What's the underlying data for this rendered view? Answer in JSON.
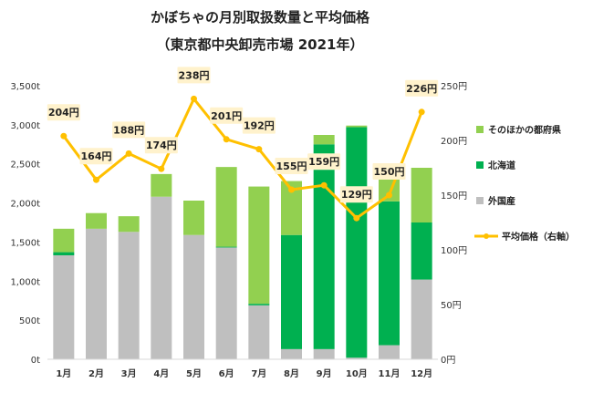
{
  "chart_data": {
    "type": "bar",
    "title": "かぼちゃの月別取扱数量と平均価格",
    "subtitle": "（東京都中央卸売市場 2021年）",
    "categories": [
      "1月",
      "2月",
      "3月",
      "4月",
      "5月",
      "6月",
      "7月",
      "8月",
      "9月",
      "10月",
      "11月",
      "12月"
    ],
    "series": [
      {
        "name": "外国産",
        "color": "#bfbfbf",
        "values": [
          1330,
          1670,
          1630,
          2080,
          1590,
          1430,
          690,
          130,
          130,
          20,
          180,
          1020
        ]
      },
      {
        "name": "北海道",
        "color": "#00b050",
        "values": [
          40,
          0,
          0,
          0,
          0,
          10,
          20,
          1460,
          2620,
          2950,
          1840,
          730
        ]
      },
      {
        "name": "そのほかの都府県",
        "color": "#92d050",
        "values": [
          300,
          200,
          200,
          290,
          440,
          1020,
          1500,
          690,
          120,
          20,
          420,
          700
        ]
      }
    ],
    "line_series": {
      "name": "平均価格（右軸）",
      "color": "#ffc000",
      "values": [
        204,
        164,
        188,
        174,
        238,
        201,
        192,
        155,
        159,
        129,
        150,
        226
      ],
      "labels": [
        "204円",
        "164円",
        "188円",
        "174円",
        "238円",
        "201円",
        "192円",
        "155円",
        "159円",
        "129円",
        "150円",
        "226円"
      ]
    },
    "y_left": {
      "min": 0,
      "max": 3500,
      "ticks": [
        0,
        500,
        1000,
        1500,
        2000,
        2500,
        3000,
        3500
      ],
      "tick_labels": [
        "0t",
        "500t",
        "1,000t",
        "1,500t",
        "2,000t",
        "2,500t",
        "3,000t",
        "3,500t"
      ]
    },
    "y_right": {
      "min": 0,
      "max": 250,
      "ticks": [
        0,
        50,
        100,
        150,
        200,
        250
      ],
      "tick_labels": [
        "0円",
        "50円",
        "100円",
        "150円",
        "200円",
        "250円"
      ]
    },
    "legend": {
      "placement": "right",
      "items": [
        {
          "label": "そのほかの都府県",
          "color": "#92d050",
          "kind": "bar"
        },
        {
          "label": "北海道",
          "color": "#00b050",
          "kind": "bar"
        },
        {
          "label": "外国産",
          "color": "#bfbfbf",
          "kind": "bar"
        },
        {
          "label": "平均価格（右軸）",
          "color": "#ffc000",
          "kind": "line"
        }
      ]
    },
    "grid": false
  }
}
